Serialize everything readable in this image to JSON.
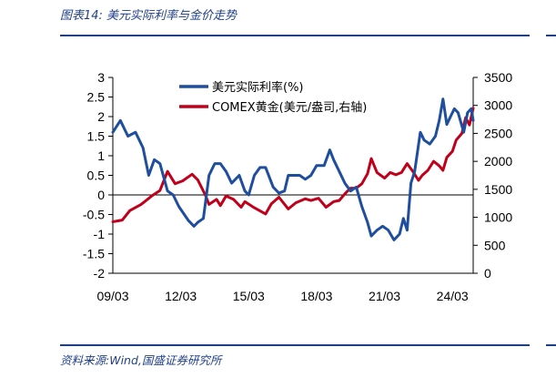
{
  "header": {
    "title": "图表14:  美元实际利率与金价走势"
  },
  "footer": {
    "source": "资料来源:Wind,国盛证券研究所"
  },
  "chart_data": {
    "type": "line",
    "title": "",
    "xlabel": "",
    "ylabel": "",
    "x_ticks": [
      "09/03",
      "12/03",
      "15/03",
      "18/03",
      "21/03",
      "24/03"
    ],
    "xlim": [
      "2009-03",
      "2025-02"
    ],
    "y_left": {
      "lim": [
        -2,
        3
      ],
      "ticks": [
        "3",
        "2.5",
        "2",
        "1.5",
        "1",
        "0.5",
        "0",
        "-0.5",
        "-1",
        "-1.5",
        "-2"
      ]
    },
    "y_right": {
      "lim": [
        0,
        3500
      ],
      "ticks": [
        "3500",
        "3000",
        "2500",
        "2000",
        "1500",
        "1000",
        "500",
        "0"
      ]
    },
    "legend_position": "top-center",
    "series": [
      {
        "name": "美元实际利率(%)",
        "axis": "left",
        "color": "#1f4e9e",
        "points": [
          [
            "2009-03",
            1.6
          ],
          [
            "2009-07",
            1.9
          ],
          [
            "2009-11",
            1.5
          ],
          [
            "2010-03",
            1.6
          ],
          [
            "2010-07",
            1.2
          ],
          [
            "2010-10",
            0.5
          ],
          [
            "2011-01",
            0.9
          ],
          [
            "2011-04",
            0.8
          ],
          [
            "2011-08",
            0.1
          ],
          [
            "2011-11",
            0.0
          ],
          [
            "2012-02",
            -0.3
          ],
          [
            "2012-07",
            -0.65
          ],
          [
            "2012-10",
            -0.8
          ],
          [
            "2012-12",
            -0.7
          ],
          [
            "2013-03",
            -0.6
          ],
          [
            "2013-06",
            0.5
          ],
          [
            "2013-09",
            0.8
          ],
          [
            "2013-12",
            0.8
          ],
          [
            "2014-03",
            0.6
          ],
          [
            "2014-06",
            0.3
          ],
          [
            "2014-10",
            0.5
          ],
          [
            "2015-01",
            0.1
          ],
          [
            "2015-03",
            0.0
          ],
          [
            "2015-06",
            0.5
          ],
          [
            "2015-09",
            0.7
          ],
          [
            "2015-12",
            0.7
          ],
          [
            "2016-04",
            0.2
          ],
          [
            "2016-07",
            0.05
          ],
          [
            "2016-10",
            0.1
          ],
          [
            "2016-12",
            0.5
          ],
          [
            "2017-03",
            0.5
          ],
          [
            "2017-06",
            0.5
          ],
          [
            "2017-09",
            0.4
          ],
          [
            "2017-12",
            0.5
          ],
          [
            "2018-03",
            0.75
          ],
          [
            "2018-07",
            0.75
          ],
          [
            "2018-10",
            1.15
          ],
          [
            "2018-12",
            0.9
          ],
          [
            "2019-03",
            0.6
          ],
          [
            "2019-06",
            0.3
          ],
          [
            "2019-09",
            0.1
          ],
          [
            "2019-12",
            0.2
          ],
          [
            "2020-03",
            -0.3
          ],
          [
            "2020-06",
            -0.7
          ],
          [
            "2020-08",
            -1.05
          ],
          [
            "2020-11",
            -0.9
          ],
          [
            "2021-02",
            -0.8
          ],
          [
            "2021-05",
            -0.9
          ],
          [
            "2021-08",
            -1.15
          ],
          [
            "2021-11",
            -1.0
          ],
          [
            "2022-01",
            -0.6
          ],
          [
            "2022-03",
            -0.9
          ],
          [
            "2022-05",
            0.3
          ],
          [
            "2022-07",
            0.6
          ],
          [
            "2022-10",
            1.6
          ],
          [
            "2022-12",
            1.4
          ],
          [
            "2023-03",
            1.3
          ],
          [
            "2023-06",
            1.5
          ],
          [
            "2023-08",
            1.9
          ],
          [
            "2023-10",
            2.45
          ],
          [
            "2023-12",
            1.8
          ],
          [
            "2024-02",
            2.0
          ],
          [
            "2024-04",
            2.2
          ],
          [
            "2024-06",
            2.1
          ],
          [
            "2024-09",
            1.6
          ],
          [
            "2024-11",
            2.1
          ],
          [
            "2025-01",
            2.2
          ],
          [
            "2025-02",
            1.9
          ]
        ]
      },
      {
        "name": "COMEX黄金(美元/盎司,右轴)",
        "axis": "right",
        "color": "#c0001a",
        "points": [
          [
            "2009-03",
            920
          ],
          [
            "2009-08",
            950
          ],
          [
            "2009-12",
            1120
          ],
          [
            "2010-06",
            1230
          ],
          [
            "2010-12",
            1390
          ],
          [
            "2011-04",
            1480
          ],
          [
            "2011-08",
            1820
          ],
          [
            "2011-12",
            1600
          ],
          [
            "2012-04",
            1650
          ],
          [
            "2012-09",
            1770
          ],
          [
            "2012-12",
            1670
          ],
          [
            "2013-04",
            1400
          ],
          [
            "2013-06",
            1230
          ],
          [
            "2013-10",
            1320
          ],
          [
            "2013-12",
            1210
          ],
          [
            "2014-03",
            1380
          ],
          [
            "2014-07",
            1320
          ],
          [
            "2014-11",
            1180
          ],
          [
            "2015-01",
            1280
          ],
          [
            "2015-06",
            1170
          ],
          [
            "2015-12",
            1060
          ],
          [
            "2016-03",
            1240
          ],
          [
            "2016-07",
            1360
          ],
          [
            "2016-12",
            1150
          ],
          [
            "2017-04",
            1260
          ],
          [
            "2017-09",
            1330
          ],
          [
            "2017-12",
            1300
          ],
          [
            "2018-04",
            1340
          ],
          [
            "2018-08",
            1180
          ],
          [
            "2018-12",
            1280
          ],
          [
            "2019-03",
            1300
          ],
          [
            "2019-06",
            1420
          ],
          [
            "2019-09",
            1520
          ],
          [
            "2019-12",
            1520
          ],
          [
            "2020-03",
            1600
          ],
          [
            "2020-06",
            1780
          ],
          [
            "2020-08",
            2050
          ],
          [
            "2020-11",
            1800
          ],
          [
            "2021-03",
            1700
          ],
          [
            "2021-06",
            1800
          ],
          [
            "2021-09",
            1760
          ],
          [
            "2021-12",
            1800
          ],
          [
            "2022-03",
            1960
          ],
          [
            "2022-06",
            1820
          ],
          [
            "2022-09",
            1660
          ],
          [
            "2022-11",
            1750
          ],
          [
            "2023-02",
            1840
          ],
          [
            "2023-05",
            2000
          ],
          [
            "2023-08",
            1920
          ],
          [
            "2023-10",
            1840
          ],
          [
            "2023-12",
            2070
          ],
          [
            "2024-03",
            2180
          ],
          [
            "2024-05",
            2380
          ],
          [
            "2024-08",
            2500
          ],
          [
            "2024-10",
            2780
          ],
          [
            "2024-12",
            2650
          ],
          [
            "2025-02",
            2950
          ]
        ]
      }
    ]
  }
}
